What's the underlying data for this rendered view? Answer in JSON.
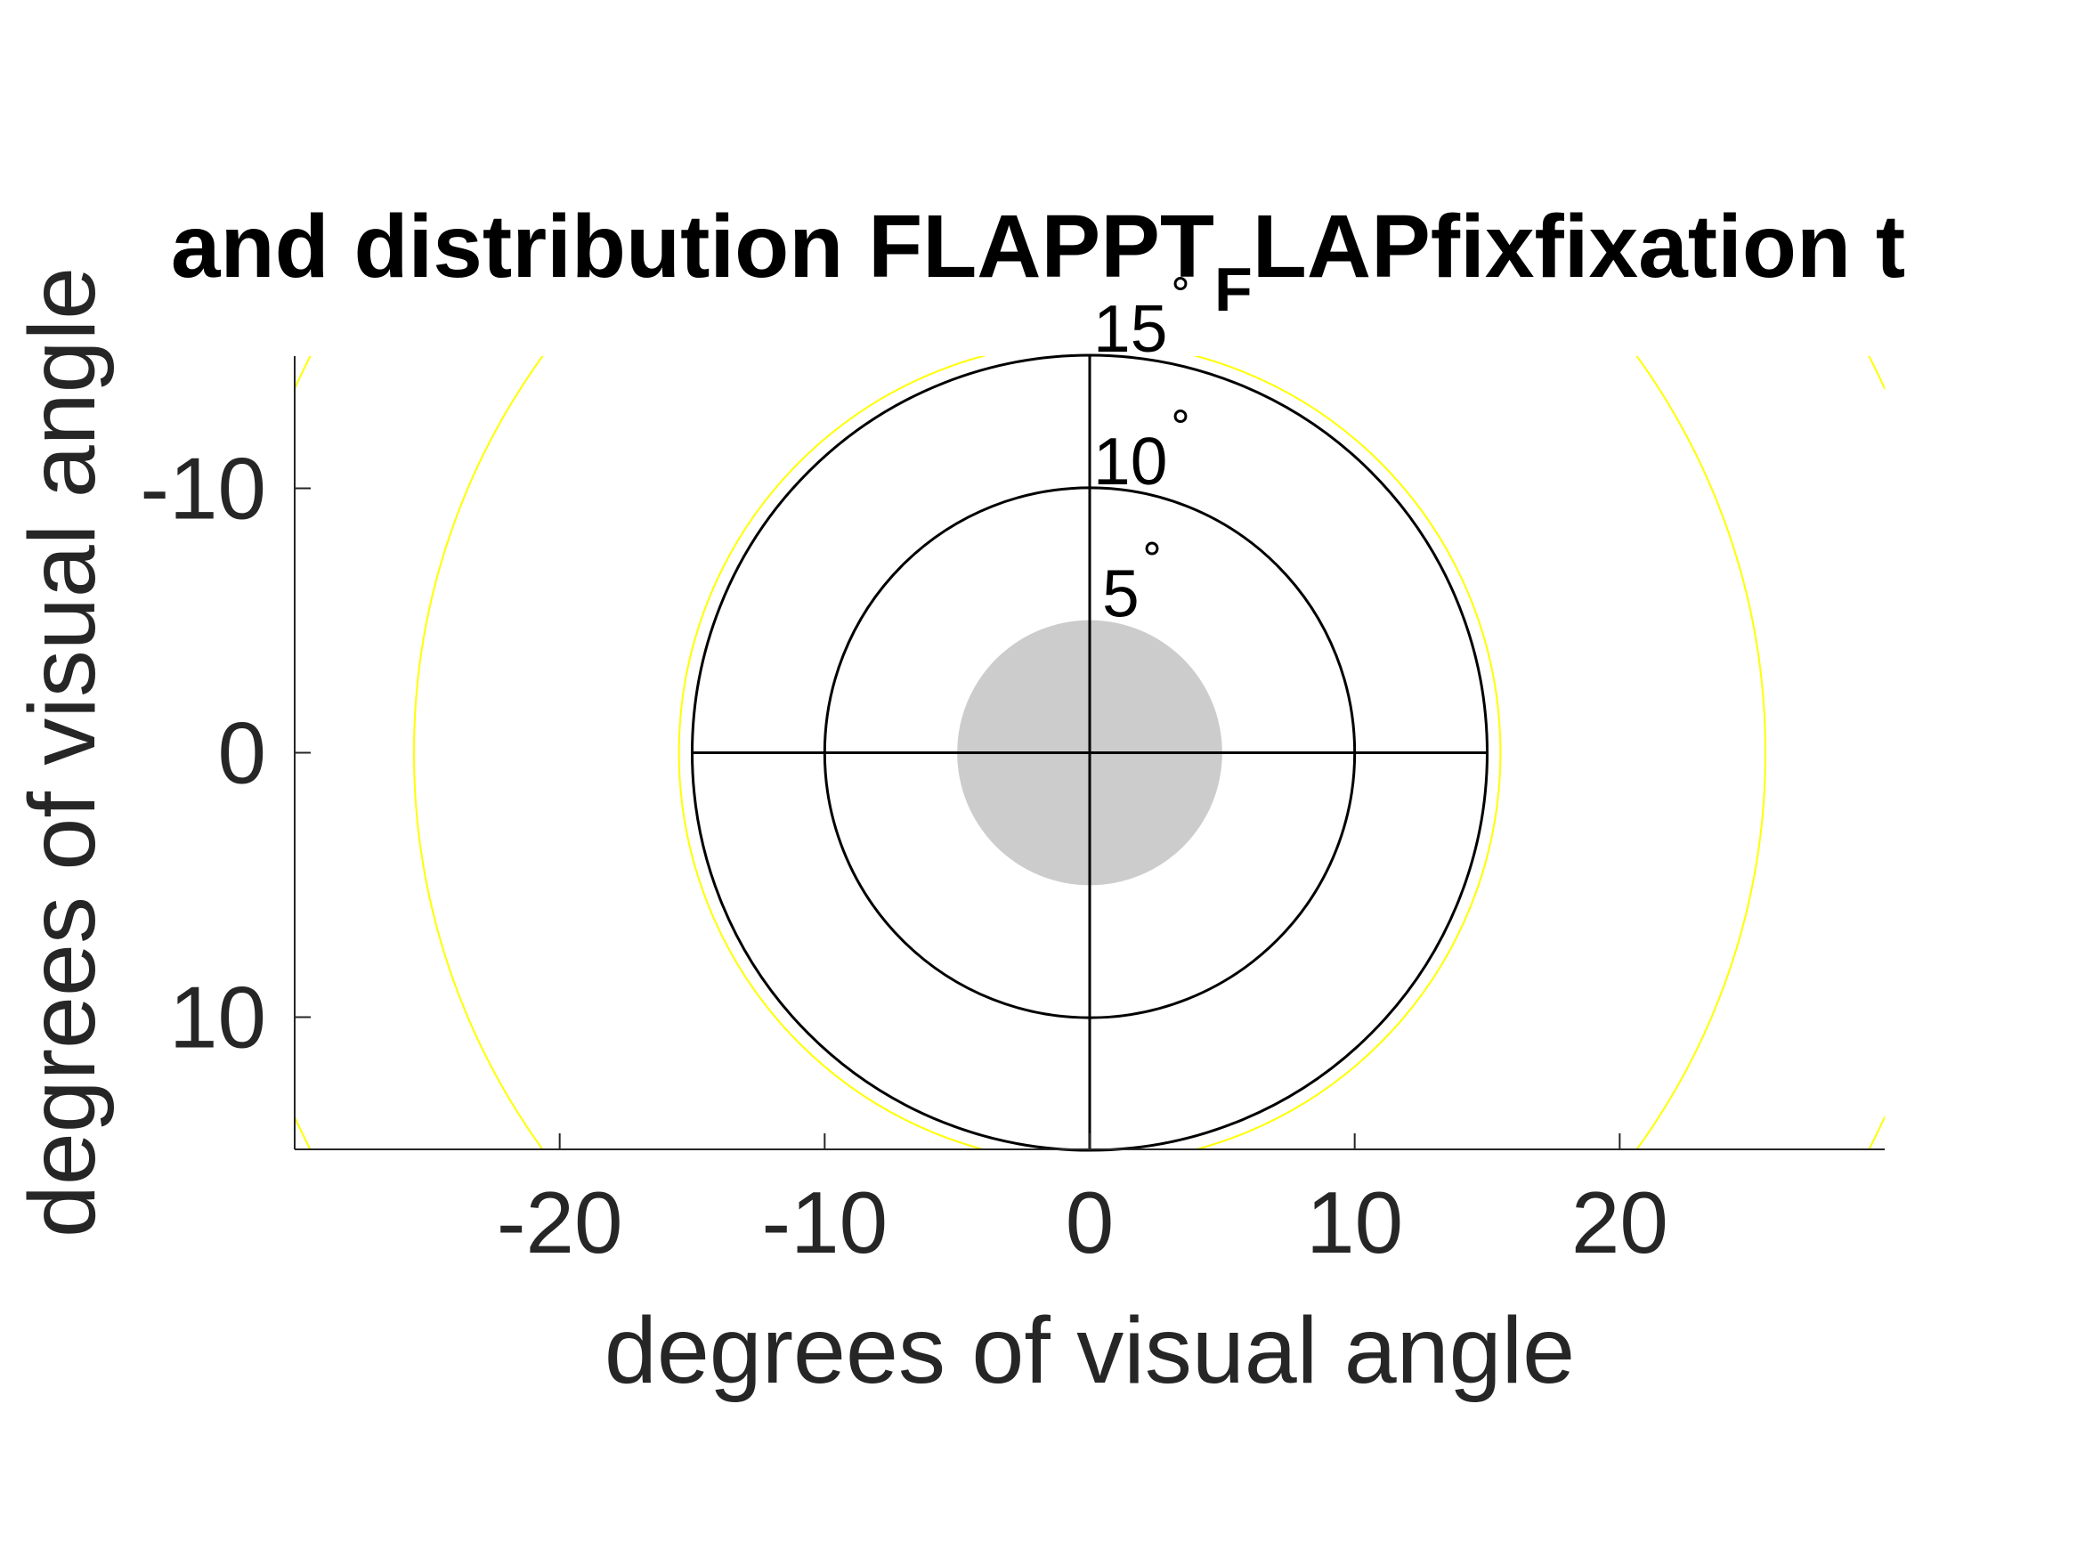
{
  "chart_data": {
    "type": "line",
    "title_parts": [
      "and distribution FLAPPT",
      "F",
      "LAPfixfixation t"
    ],
    "xlabel": "degrees of visual angle",
    "ylabel": "degrees of visual angle",
    "xlim": [
      -30,
      30
    ],
    "ylim": [
      -15,
      15
    ],
    "y_reversed": true,
    "x_ticks": [
      -20,
      -10,
      0,
      10,
      20
    ],
    "x_tick_labels": [
      "-20",
      "-10",
      "0",
      "10",
      "20"
    ],
    "y_ticks": [
      -10,
      0,
      10
    ],
    "y_tick_labels": [
      "-10",
      "0",
      "10"
    ],
    "fixation_disc": {
      "radius": 5,
      "color": "#cccccc"
    },
    "eccentricity_rings": [
      {
        "radius": 10,
        "label": "10",
        "degree_symbol": "°"
      },
      {
        "radius": 15,
        "label": "15",
        "degree_symbol": "°"
      }
    ],
    "disc_label": {
      "value": 5,
      "label": "5",
      "degree_symbol": "°"
    },
    "ring_color": "#000000",
    "contour_color": "#ffff00",
    "contour_radii": [
      15.5,
      25.5,
      33
    ]
  }
}
